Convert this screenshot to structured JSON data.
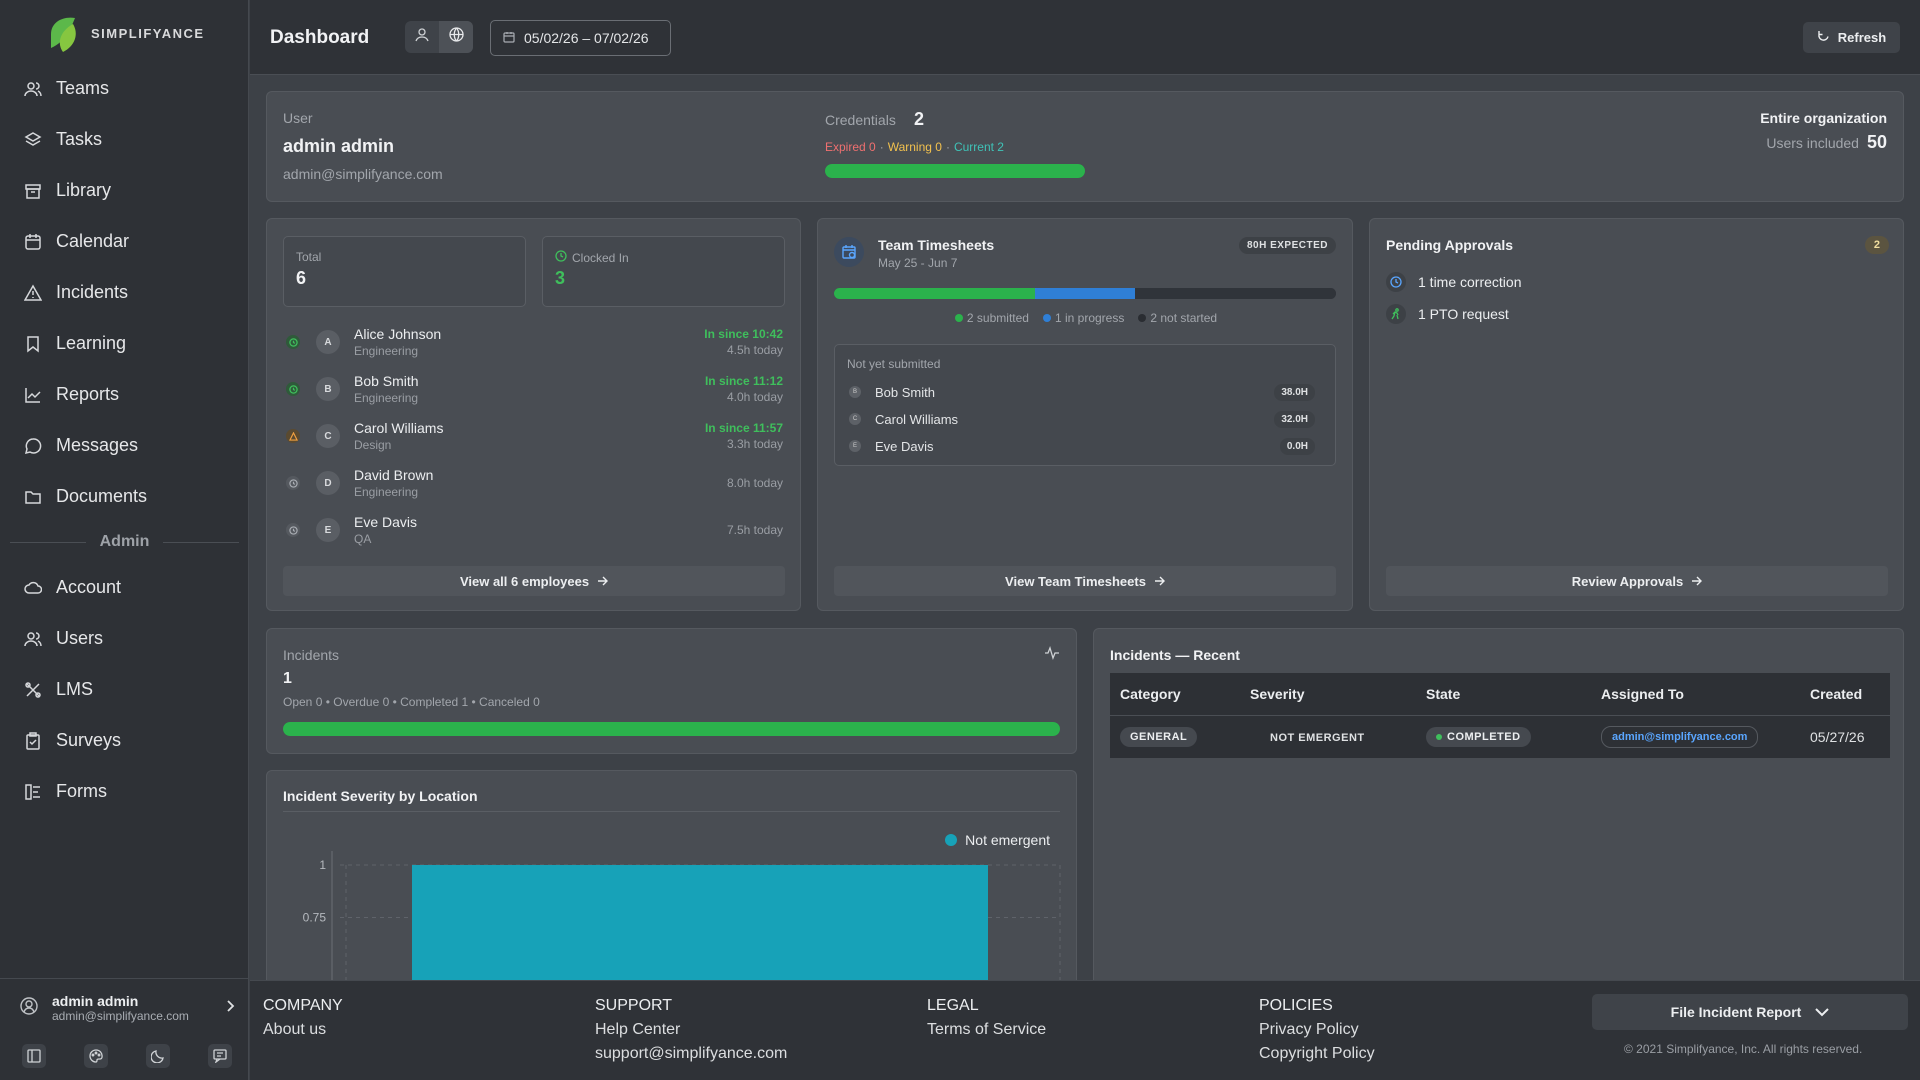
{
  "brand": {
    "name": "SIMPLIFYANCE"
  },
  "sidebar": {
    "items": [
      {
        "label": "Teams",
        "icon": "users-icon"
      },
      {
        "label": "Tasks",
        "icon": "layers-icon"
      },
      {
        "label": "Library",
        "icon": "archive-icon"
      },
      {
        "label": "Calendar",
        "icon": "calendar-icon"
      },
      {
        "label": "Incidents",
        "icon": "warning-icon"
      },
      {
        "label": "Learning",
        "icon": "bookmark-icon"
      },
      {
        "label": "Reports",
        "icon": "chart-line-icon"
      },
      {
        "label": "Messages",
        "icon": "message-icon"
      },
      {
        "label": "Documents",
        "icon": "folder-icon"
      }
    ],
    "admin_label": "Admin",
    "admin_items": [
      {
        "label": "Account",
        "icon": "cloud-icon"
      },
      {
        "label": "Users",
        "icon": "users-icon"
      },
      {
        "label": "LMS",
        "icon": "tools-icon"
      },
      {
        "label": "Surveys",
        "icon": "clipboard-icon"
      },
      {
        "label": "Forms",
        "icon": "forms-icon"
      }
    ],
    "user": {
      "name": "admin admin",
      "email": "admin@simplifyance.com"
    }
  },
  "header": {
    "title": "Dashboard",
    "date_range": "05/02/26 – 07/02/26",
    "refresh_label": "Refresh"
  },
  "user_card": {
    "label": "User",
    "name": "admin admin",
    "email": "admin@simplifyance.com",
    "credentials_label": "Credentials",
    "credentials_count": "2",
    "expired": "Expired 0",
    "warning": "Warning 0",
    "current": "Current 2",
    "current_fraction": 1.0,
    "scope": "Entire organization",
    "users_included_label": "Users included",
    "users_included": "50"
  },
  "employees_card": {
    "total_label": "Total",
    "total": "6",
    "clocked_label": "Clocked In",
    "clocked": "3",
    "rows": [
      {
        "initial": "A",
        "name": "Alice Johnson",
        "dept": "Engineering",
        "since": "In since 10:42",
        "today": "4.5h today",
        "status": "clocked"
      },
      {
        "initial": "B",
        "name": "Bob Smith",
        "dept": "Engineering",
        "since": "In since 11:12",
        "today": "4.0h today",
        "status": "clocked"
      },
      {
        "initial": "C",
        "name": "Carol Williams",
        "dept": "Design",
        "since": "In since 11:57",
        "today": "3.3h today",
        "status": "warning"
      },
      {
        "initial": "D",
        "name": "David Brown",
        "dept": "Engineering",
        "since": "",
        "today": "8.0h today",
        "status": "out"
      },
      {
        "initial": "E",
        "name": "Eve Davis",
        "dept": "QA",
        "since": "",
        "today": "7.5h today",
        "status": "out"
      }
    ],
    "view_all": "View all 6 employees"
  },
  "timesheets_card": {
    "title": "Team Timesheets",
    "range": "May 25 - Jun 7",
    "badge": "80H EXPECTED",
    "submitted": "2 submitted",
    "in_progress": "1 in progress",
    "not_started": "2 not started",
    "fractions": {
      "submitted": 0.4,
      "in_progress": 0.2,
      "not_started": 0.4
    },
    "not_yet_label": "Not yet submitted",
    "rows": [
      {
        "initial": "B",
        "name": "Bob Smith",
        "hours": "38.0H"
      },
      {
        "initial": "C",
        "name": "Carol Williams",
        "hours": "32.0H"
      },
      {
        "initial": "E",
        "name": "Eve Davis",
        "hours": "0.0H"
      }
    ],
    "view": "View Team Timesheets"
  },
  "approvals_card": {
    "title": "Pending Approvals",
    "count": "2",
    "items": [
      {
        "label": "1 time correction",
        "icon": "clock-icon"
      },
      {
        "label": "1 PTO request",
        "icon": "runner-icon"
      }
    ],
    "review": "Review Approvals"
  },
  "incidents_card": {
    "label": "Incidents",
    "count": "1",
    "breakdown": "Open 0 • Overdue 0 • Completed 1 • Canceled 0",
    "completed_fraction": 1.0
  },
  "chart": {
    "title": "Incident Severity by Location",
    "legend": "Not emergent",
    "color": "#17a2b8"
  },
  "chart_data": {
    "type": "bar",
    "title": "Incident Severity by Location",
    "series": [
      {
        "name": "Not emergent",
        "values": [
          1
        ]
      }
    ],
    "y_ticks": [
      "1",
      "0.75"
    ],
    "ylim": [
      0,
      1
    ],
    "grid": true,
    "legend": "top-right"
  },
  "recent_incidents": {
    "title": "Incidents — Recent",
    "columns": [
      "Category",
      "Severity",
      "State",
      "Assigned To",
      "Created"
    ],
    "rows": [
      {
        "category": "GENERAL",
        "severity": "NOT EMERGENT",
        "state": "COMPLETED",
        "assigned": "admin@simplifyance.com",
        "created": "05/27/26"
      }
    ]
  },
  "footer": {
    "company": {
      "heading": "COMPANY",
      "links": [
        "About us"
      ]
    },
    "support": {
      "heading": "SUPPORT",
      "links": [
        "Help Center",
        "support@simplifyance.com"
      ]
    },
    "legal": {
      "heading": "LEGAL",
      "links": [
        "Terms of Service"
      ]
    },
    "policies": {
      "heading": "POLICIES",
      "links": [
        "Privacy Policy",
        "Copyright Policy"
      ]
    },
    "file_report": "File Incident Report",
    "copyright": "© 2021 Simplifyance, Inc. All rights reserved."
  }
}
